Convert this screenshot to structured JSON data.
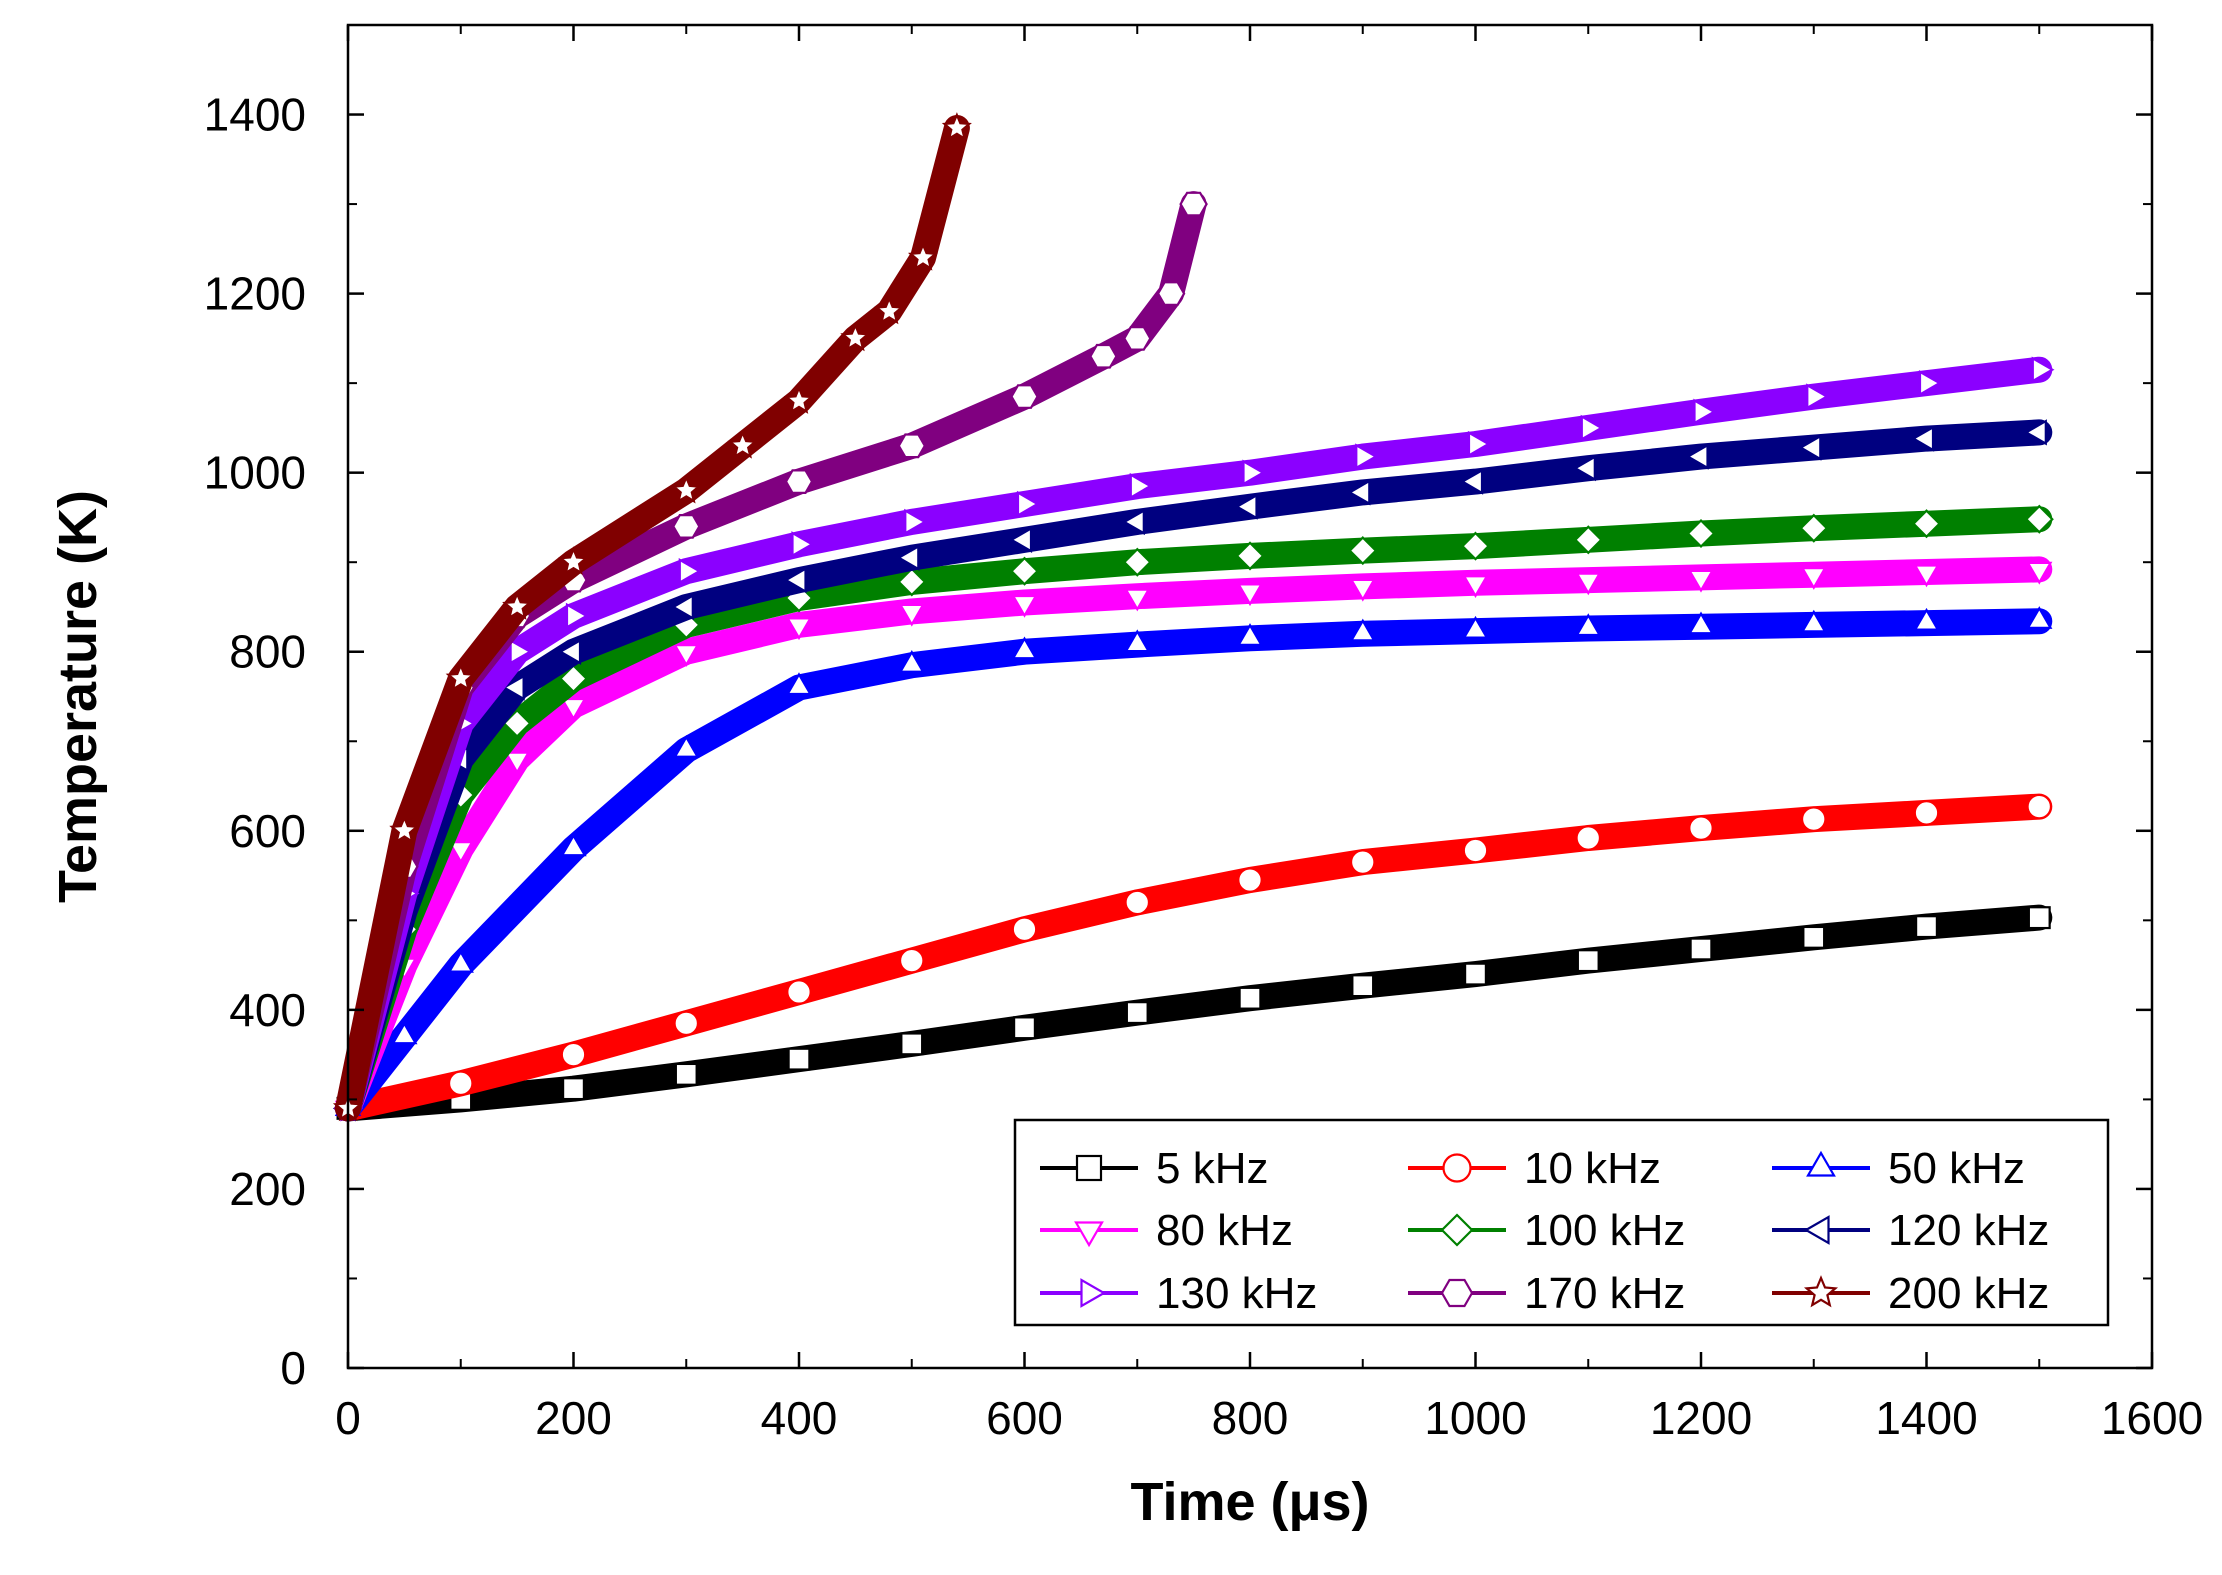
{
  "chart_data": {
    "type": "line",
    "xlabel": "Time (μs)",
    "ylabel": "Temperature (K)",
    "xlim": [
      0,
      1600
    ],
    "ylim": [
      0,
      1500
    ],
    "xticks": [
      "0",
      "200",
      "400",
      "600",
      "800",
      "1000",
      "1200",
      "1400",
      "1600"
    ],
    "yticks": [
      "0",
      "200",
      "400",
      "600",
      "800",
      "1000",
      "1200",
      "1400"
    ],
    "grid": false,
    "legend_position": "bottom-right",
    "series": [
      {
        "name": "5 kHz",
        "color": "#000000",
        "marker": "square",
        "x": [
          0,
          100,
          200,
          300,
          400,
          500,
          600,
          700,
          800,
          900,
          1000,
          1100,
          1200,
          1300,
          1400,
          1500
        ],
        "y": [
          290,
          300,
          312,
          328,
          345,
          362,
          380,
          397,
          413,
          427,
          440,
          455,
          468,
          481,
          493,
          503
        ]
      },
      {
        "name": "10 kHz",
        "color": "#ff0000",
        "marker": "circle",
        "x": [
          0,
          100,
          200,
          300,
          400,
          500,
          600,
          700,
          800,
          900,
          1000,
          1100,
          1200,
          1300,
          1400,
          1500
        ],
        "y": [
          290,
          318,
          350,
          385,
          420,
          455,
          490,
          520,
          545,
          565,
          578,
          592,
          603,
          613,
          620,
          627
        ]
      },
      {
        "name": "50 kHz",
        "color": "#0000ff",
        "marker": "triangle-up",
        "x": [
          0,
          50,
          100,
          200,
          300,
          400,
          500,
          600,
          700,
          800,
          900,
          1000,
          1100,
          1200,
          1300,
          1400,
          1500
        ],
        "y": [
          290,
          370,
          450,
          580,
          690,
          760,
          785,
          800,
          808,
          815,
          820,
          823,
          826,
          828,
          830,
          832,
          834
        ]
      },
      {
        "name": "80 kHz",
        "color": "#ff00ff",
        "marker": "triangle-down",
        "x": [
          0,
          50,
          100,
          150,
          200,
          300,
          400,
          500,
          600,
          700,
          800,
          900,
          1000,
          1100,
          1200,
          1300,
          1400,
          1500
        ],
        "y": [
          290,
          450,
          580,
          680,
          740,
          800,
          830,
          845,
          855,
          862,
          868,
          873,
          877,
          880,
          883,
          886,
          889,
          892
        ]
      },
      {
        "name": "100 kHz",
        "color": "#008000",
        "marker": "diamond",
        "x": [
          0,
          50,
          100,
          150,
          200,
          300,
          400,
          500,
          600,
          700,
          800,
          900,
          1000,
          1100,
          1200,
          1300,
          1400,
          1500
        ],
        "y": [
          290,
          490,
          640,
          720,
          770,
          830,
          860,
          878,
          890,
          900,
          907,
          913,
          918,
          925,
          932,
          938,
          943,
          948
        ]
      },
      {
        "name": "120 kHz",
        "color": "#000080",
        "marker": "triangle-left",
        "x": [
          0,
          50,
          100,
          150,
          200,
          300,
          400,
          500,
          600,
          700,
          800,
          900,
          1000,
          1100,
          1200,
          1300,
          1400,
          1500
        ],
        "y": [
          290,
          510,
          680,
          760,
          800,
          850,
          880,
          905,
          925,
          945,
          962,
          978,
          990,
          1005,
          1018,
          1028,
          1038,
          1045
        ]
      },
      {
        "name": "130 kHz",
        "color": "#8b00ff",
        "marker": "triangle-right",
        "x": [
          0,
          50,
          100,
          150,
          200,
          300,
          400,
          500,
          600,
          700,
          800,
          900,
          1000,
          1100,
          1200,
          1300,
          1400,
          1500
        ],
        "y": [
          290,
          530,
          720,
          800,
          840,
          890,
          920,
          945,
          965,
          985,
          1000,
          1018,
          1032,
          1050,
          1068,
          1085,
          1100,
          1115
        ]
      },
      {
        "name": "170 kHz",
        "color": "#800080",
        "marker": "hexagon",
        "x": [
          0,
          50,
          100,
          150,
          200,
          300,
          400,
          500,
          600,
          670,
          700,
          730,
          750
        ],
        "y": [
          290,
          560,
          760,
          840,
          880,
          940,
          990,
          1030,
          1085,
          1130,
          1150,
          1200,
          1300
        ]
      },
      {
        "name": "200 kHz",
        "color": "#800000",
        "marker": "star",
        "x": [
          0,
          50,
          100,
          150,
          200,
          300,
          350,
          400,
          450,
          480,
          510,
          540
        ],
        "y": [
          290,
          600,
          770,
          850,
          900,
          980,
          1030,
          1080,
          1150,
          1180,
          1240,
          1385
        ]
      }
    ]
  }
}
